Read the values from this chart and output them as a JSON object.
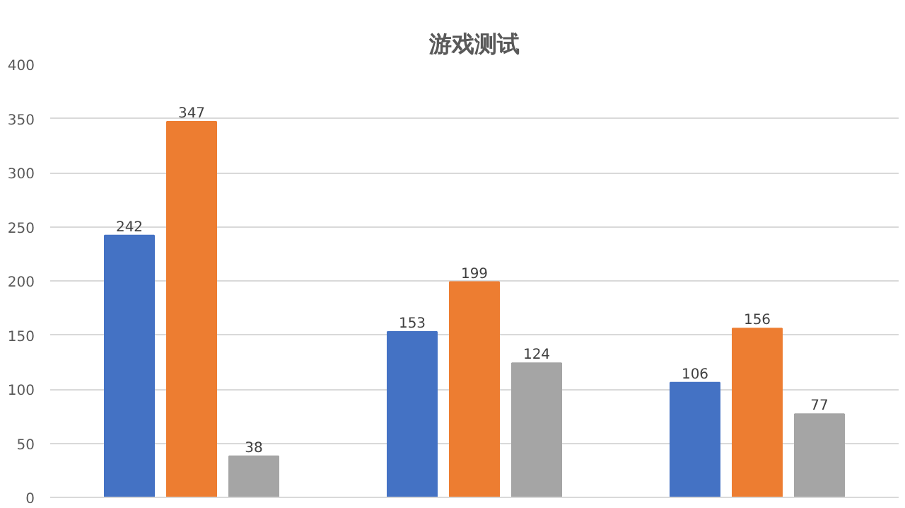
{
  "chart_data": {
    "type": "bar",
    "title": "游戏测试",
    "categories": [
      null,
      null,
      null
    ],
    "series": [
      {
        "color": "#4472c4",
        "values": [
          242,
          153,
          106
        ]
      },
      {
        "color": "#ed7d31",
        "values": [
          347,
          199,
          156
        ]
      },
      {
        "color": "#a5a5a5",
        "values": [
          38,
          124,
          77
        ]
      }
    ],
    "ylim": [
      0,
      400
    ],
    "yticks": [
      0,
      50,
      100,
      150,
      200,
      250,
      300,
      350,
      400
    ],
    "grid": "y",
    "data_labels": true,
    "tick_labels": "y"
  }
}
